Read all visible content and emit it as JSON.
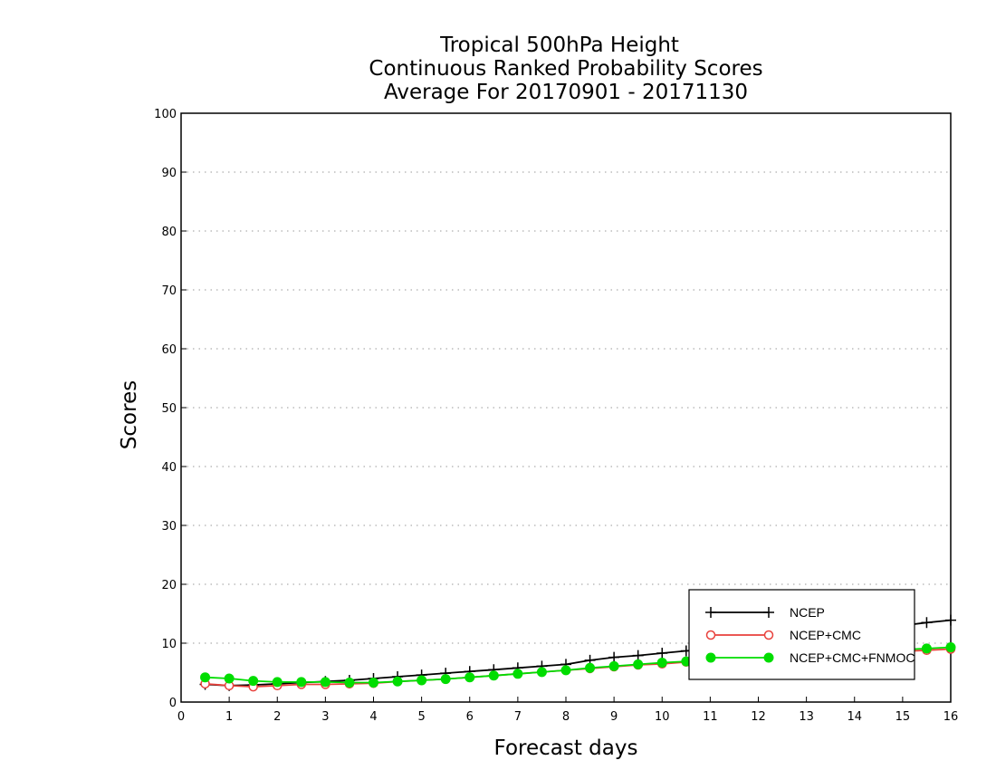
{
  "chart_data": {
    "type": "line",
    "title": [
      "Tropical 500hPa Height",
      "Continuous Ranked Probability Scores",
      "Average For 20170901 - 20171130"
    ],
    "xlabel": "Forecast days",
    "ylabel": "Scores",
    "xlim": [
      0,
      16
    ],
    "ylim": [
      0,
      100
    ],
    "xticks": [
      0,
      1,
      2,
      3,
      4,
      5,
      6,
      7,
      8,
      9,
      10,
      11,
      12,
      13,
      14,
      15,
      16
    ],
    "yticks": [
      0,
      10,
      20,
      30,
      40,
      50,
      60,
      70,
      80,
      90,
      100
    ],
    "grid": "horizontal dotted",
    "legend_position": "bottom-right",
    "x": [
      0.5,
      1,
      1.5,
      2,
      2.5,
      3,
      3.5,
      4,
      4.5,
      5,
      5.5,
      6,
      6.5,
      7,
      7.5,
      8,
      8.5,
      9,
      9.5,
      10,
      10.5,
      11,
      11.5,
      12,
      12.5,
      13,
      13.5,
      14,
      14.5,
      15,
      15.5,
      16
    ],
    "series": [
      {
        "name": "NCEP",
        "color": "#000000",
        "marker": "plus",
        "values": [
          3.0,
          2.8,
          2.9,
          3.1,
          3.3,
          3.5,
          3.7,
          4.0,
          4.3,
          4.6,
          4.9,
          5.2,
          5.5,
          5.8,
          6.1,
          6.4,
          7.1,
          7.6,
          7.9,
          8.3,
          8.7,
          9.1,
          9.6,
          10.1,
          10.6,
          11.1,
          11.6,
          12.1,
          12.6,
          13.0,
          13.5,
          13.9
        ]
      },
      {
        "name": "NCEP+CMC",
        "color": "#e8413c",
        "marker": "open-circle",
        "values": [
          3.1,
          2.8,
          2.6,
          2.8,
          3.0,
          3.0,
          3.1,
          3.2,
          3.5,
          3.7,
          3.9,
          4.2,
          4.5,
          4.8,
          5.1,
          5.4,
          5.7,
          6.0,
          6.3,
          6.5,
          6.8,
          7.0,
          7.2,
          7.4,
          7.6,
          7.8,
          8.0,
          8.2,
          8.4,
          8.6,
          8.8,
          9.0
        ]
      },
      {
        "name": "NCEP+CMC+FNMOC",
        "color": "#00dd00",
        "marker": "filled-circle",
        "values": [
          4.2,
          4.0,
          3.6,
          3.4,
          3.4,
          3.4,
          3.3,
          3.3,
          3.5,
          3.7,
          3.9,
          4.2,
          4.5,
          4.8,
          5.1,
          5.4,
          5.8,
          6.1,
          6.4,
          6.7,
          6.9,
          7.2,
          7.4,
          7.6,
          7.8,
          8.0,
          8.2,
          8.4,
          8.6,
          8.9,
          9.1,
          9.3
        ]
      }
    ]
  }
}
